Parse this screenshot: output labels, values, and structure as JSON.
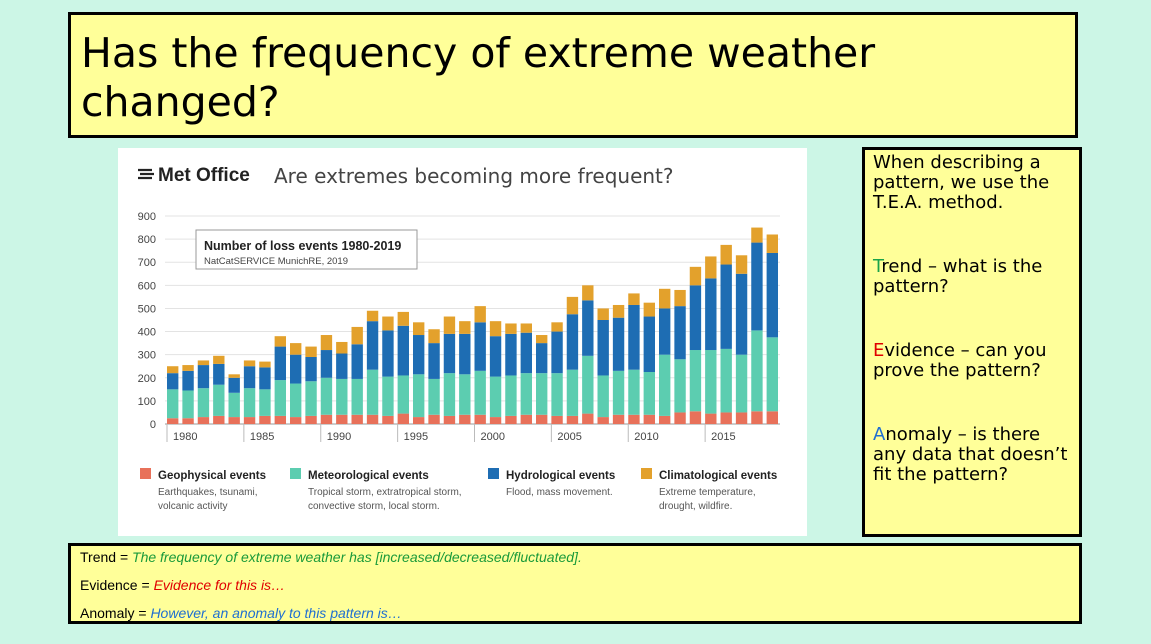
{
  "title": "Has the frequency of extreme weather changed?",
  "chart_data": {
    "type": "bar",
    "stacked": true,
    "brand": "Met Office",
    "title": "Are extremes becoming more frequent?",
    "inset_title": "Number of loss events 1980-2019",
    "inset_subtitle": "NatCatSERVICE MunichRE, 2019",
    "ylim": [
      0,
      900
    ],
    "yticks": [
      "900",
      "800",
      "700",
      "600",
      "500",
      "400",
      "300",
      "200",
      "100",
      "0"
    ],
    "ytick_values": [
      900,
      800,
      700,
      600,
      500,
      400,
      300,
      200,
      100,
      0
    ],
    "xtick_labels": [
      "1980",
      "1985",
      "1990",
      "1995",
      "2000",
      "2005",
      "2010",
      "2015"
    ],
    "xtick_years": [
      1980,
      1985,
      1990,
      1995,
      2000,
      2005,
      2010,
      2015
    ],
    "years": [
      1980,
      1981,
      1982,
      1983,
      1984,
      1985,
      1986,
      1987,
      1988,
      1989,
      1990,
      1991,
      1992,
      1993,
      1994,
      1995,
      1996,
      1997,
      1998,
      1999,
      2000,
      2001,
      2002,
      2003,
      2004,
      2005,
      2006,
      2007,
      2008,
      2009,
      2010,
      2011,
      2012,
      2013,
      2014,
      2015,
      2016,
      2017,
      2018,
      2019
    ],
    "series": [
      {
        "name": "Geophysical events",
        "color": "#e8715a",
        "values": [
          25,
          25,
          30,
          35,
          30,
          30,
          35,
          35,
          30,
          35,
          40,
          40,
          40,
          40,
          35,
          45,
          30,
          40,
          35,
          40,
          40,
          30,
          35,
          40,
          40,
          35,
          35,
          45,
          30,
          40,
          40,
          40,
          35,
          50,
          55,
          45,
          50,
          50,
          55,
          55
        ]
      },
      {
        "name": "Meteorological events",
        "color": "#5ccdb0",
        "values": [
          125,
          120,
          125,
          135,
          105,
          125,
          115,
          155,
          145,
          150,
          160,
          155,
          155,
          195,
          170,
          165,
          185,
          155,
          185,
          175,
          190,
          175,
          175,
          180,
          180,
          185,
          200,
          250,
          180,
          190,
          195,
          185,
          265,
          230,
          265,
          275,
          275,
          250,
          350,
          320
        ]
      },
      {
        "name": "Hydrological events",
        "color": "#1e6db3",
        "values": [
          70,
          85,
          100,
          90,
          65,
          95,
          95,
          145,
          125,
          105,
          120,
          110,
          150,
          210,
          200,
          215,
          170,
          155,
          170,
          175,
          210,
          175,
          180,
          175,
          130,
          180,
          240,
          240,
          240,
          230,
          280,
          240,
          200,
          230,
          280,
          310,
          365,
          350,
          380,
          365
        ]
      },
      {
        "name": "Climatological events",
        "color": "#e3a12c",
        "values": [
          30,
          25,
          20,
          35,
          15,
          25,
          25,
          45,
          50,
          45,
          65,
          50,
          75,
          45,
          60,
          60,
          55,
          60,
          75,
          55,
          70,
          65,
          45,
          40,
          35,
          40,
          75,
          65,
          50,
          55,
          50,
          60,
          85,
          70,
          80,
          95,
          85,
          80,
          65,
          80
        ]
      }
    ],
    "legend": [
      {
        "label": "Geophysical events",
        "desc1": "Earthquakes, tsunami,",
        "desc2": "volcanic activity",
        "color": "#e8715a"
      },
      {
        "label": "Meteorological events",
        "desc1": "Tropical storm, extratropical storm,",
        "desc2": "convective storm, local storm.",
        "color": "#5ccdb0"
      },
      {
        "label": "Hydrological events",
        "desc1": "Flood, mass movement.",
        "desc2": "",
        "color": "#1e6db3"
      },
      {
        "label": "Climatological events",
        "desc1": "Extreme temperature,",
        "desc2": "drought, wildfire.",
        "color": "#e3a12c"
      }
    ]
  },
  "tea": {
    "intro": "When describing a pattern, we use the T.E.A. method.",
    "trend_letter": "T",
    "trend_rest": "rend – what is the pattern?",
    "evidence_letter": "E",
    "evidence_rest": "vidence – can you prove the pattern?",
    "anomaly_letter": "A",
    "anomaly_rest": "nomaly – is there any data that doesn’t fit the pattern?"
  },
  "sentences": {
    "trend_label": "Trend = ",
    "trend_text": "The frequency of extreme weather has [increased/decreased/fluctuated].",
    "evidence_label": "Evidence = ",
    "evidence_text": "Evidence for this is…",
    "anomaly_label": "Anomaly = ",
    "anomaly_text": "However, an anomaly to this pattern is…"
  }
}
